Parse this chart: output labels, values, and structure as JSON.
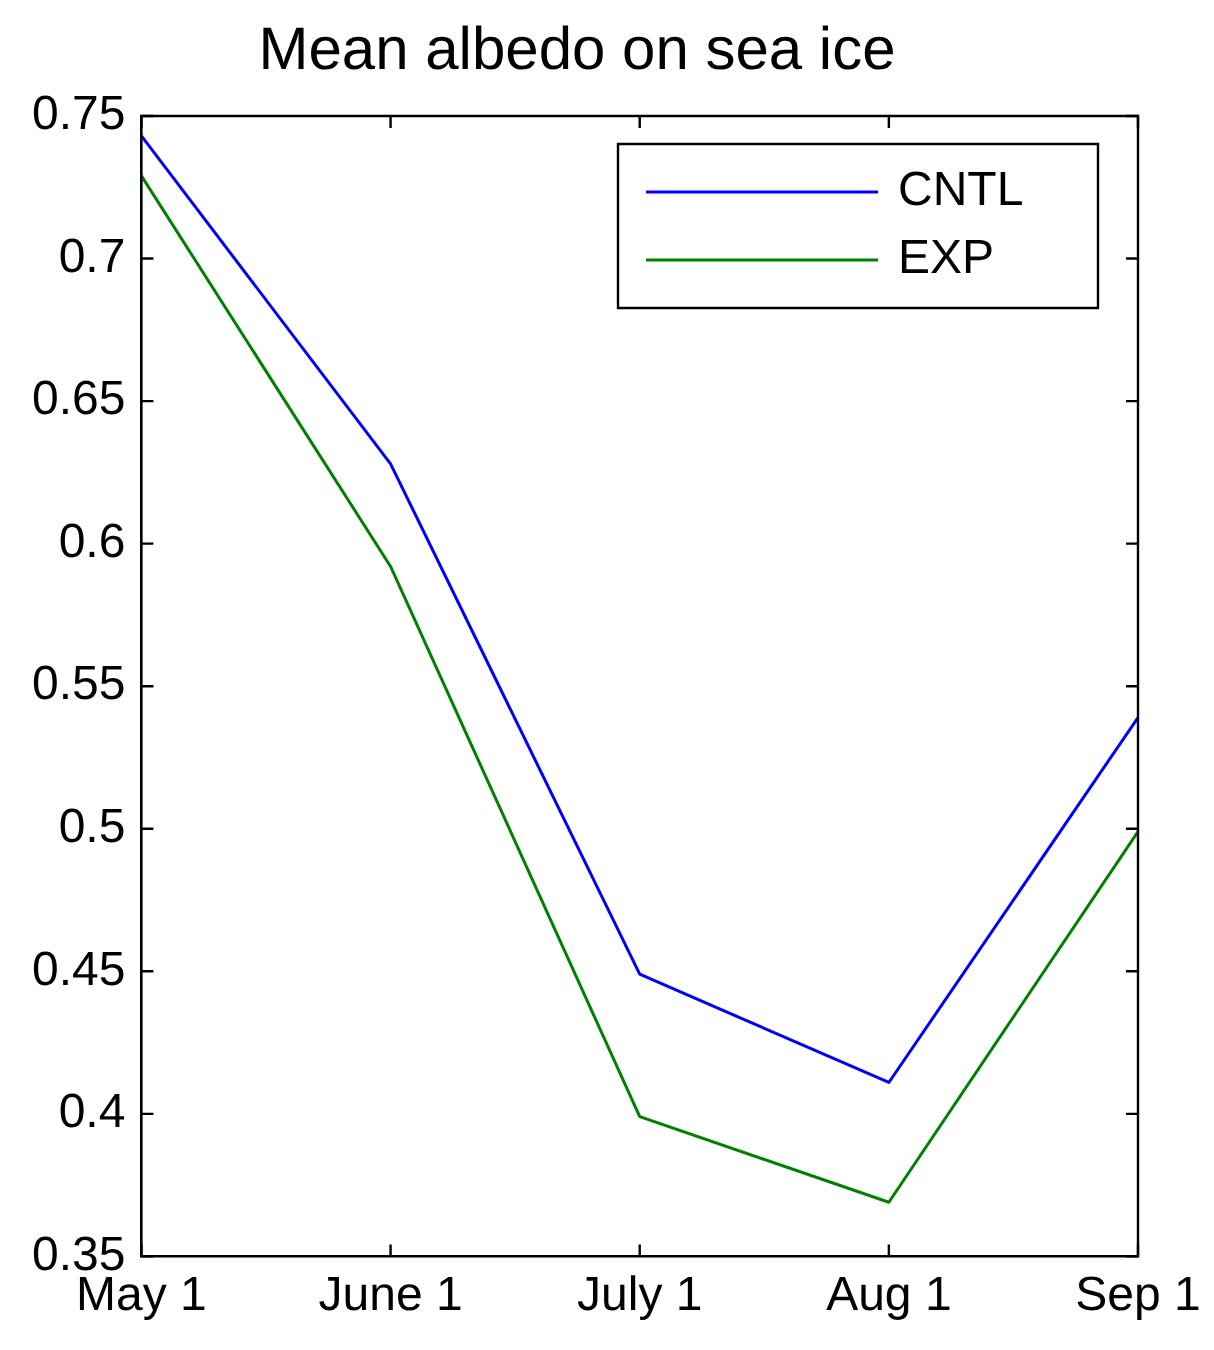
{
  "chart_data": {
    "type": "line",
    "title": "Mean albedo on sea ice",
    "categories": [
      "May 1",
      "June 1",
      "July 1",
      "Aug 1",
      "Sep 1"
    ],
    "series": [
      {
        "name": "CNTL",
        "color": "#0000ff",
        "values": [
          0.743,
          0.628,
          0.449,
          0.411,
          0.539
        ]
      },
      {
        "name": "EXP",
        "color": "#008000",
        "values": [
          0.729,
          0.592,
          0.399,
          0.369,
          0.499
        ]
      }
    ],
    "ylim": [
      0.35,
      0.75
    ],
    "yticks": [
      0.35,
      0.4,
      0.45,
      0.5,
      0.55,
      0.6,
      0.65,
      0.7,
      0.75
    ],
    "grid": false,
    "legend": "top right",
    "marker": "none",
    "line_style": "solid"
  }
}
